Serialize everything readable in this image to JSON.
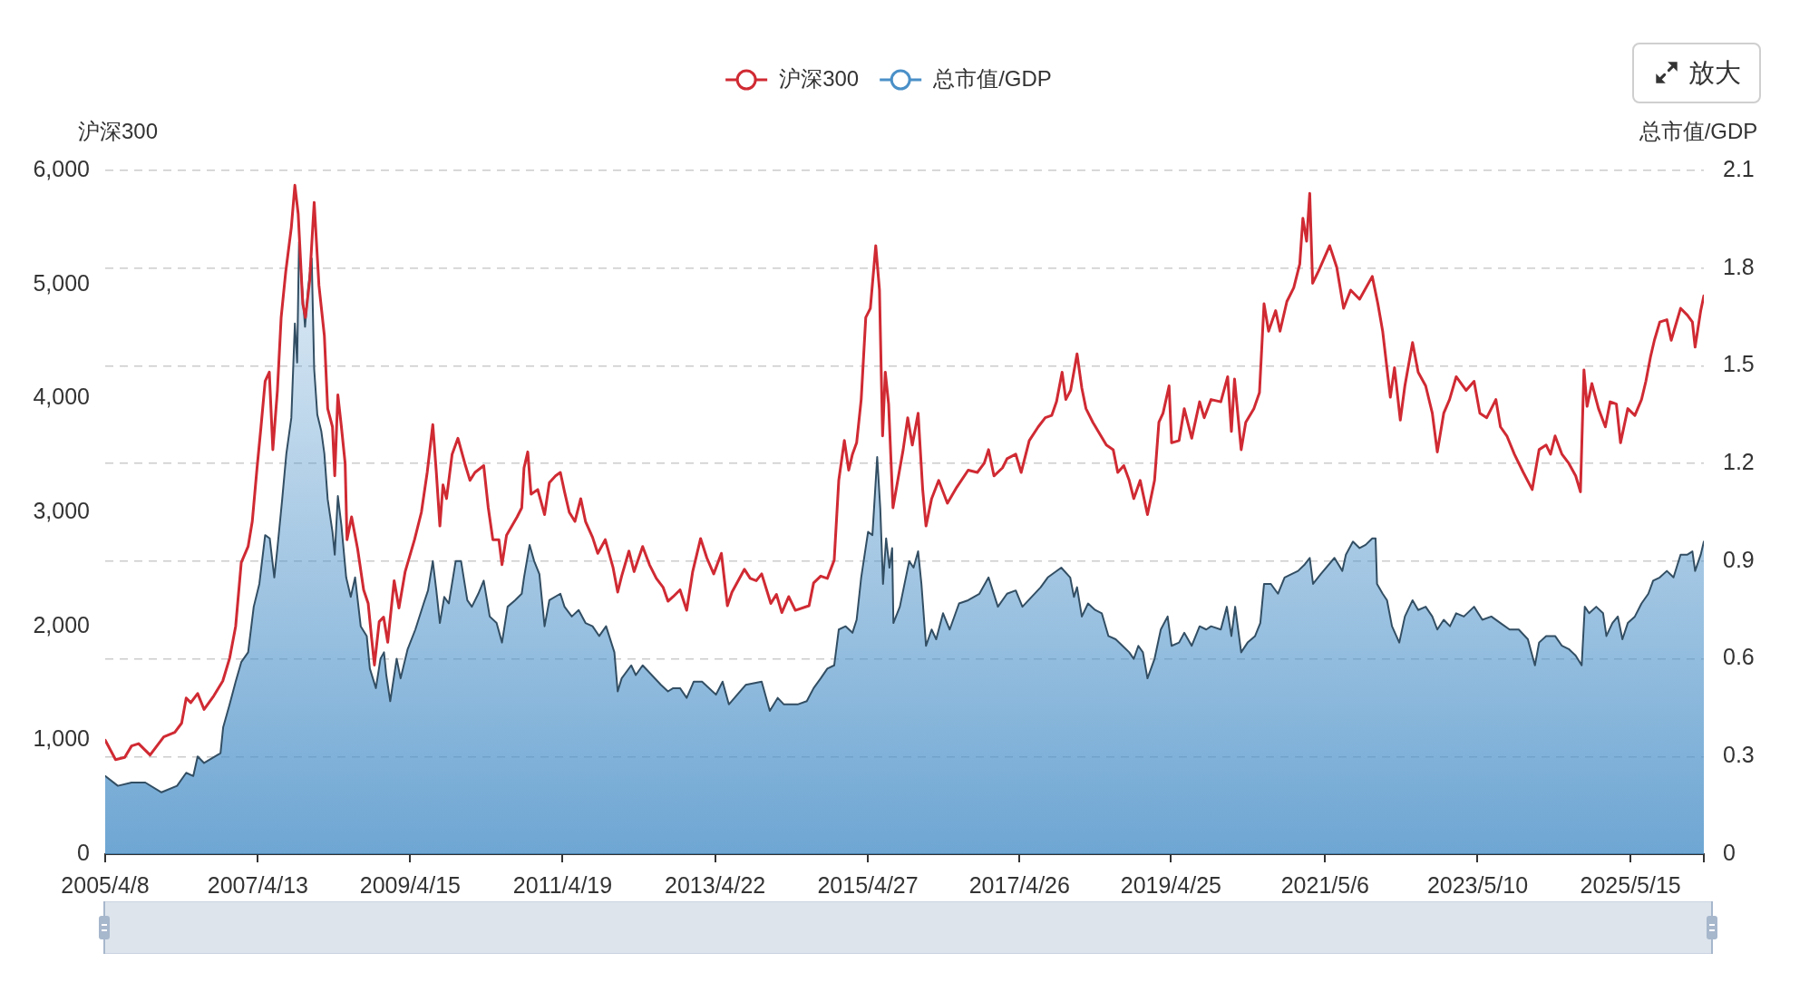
{
  "chart_data": {
    "type": "line",
    "ylabel": "沪深300",
    "y2label": "总市值/GDP",
    "annotations": [
      "放大"
    ],
    "legend": "top",
    "grid": "y2",
    "xlim": [
      "2005-04-08",
      "2026-05-03"
    ],
    "xticks": [
      {
        "value": "2005-04-08",
        "label": "2005/4/8"
      },
      {
        "value": "2007-04-13",
        "label": "2007/4/13"
      },
      {
        "value": "2009-04-15",
        "label": "2009/4/15"
      },
      {
        "value": "2011-04-19",
        "label": "2011/4/19"
      },
      {
        "value": "2013-04-22",
        "label": "2013/4/22"
      },
      {
        "value": "2015-04-27",
        "label": "2015/4/27"
      },
      {
        "value": "2017-04-26",
        "label": "2017/4/26"
      },
      {
        "value": "2019-04-25",
        "label": "2019/4/25"
      },
      {
        "value": "2021-05-06",
        "label": "2021/5/6"
      },
      {
        "value": "2023-05-10",
        "label": "2023/5/10"
      },
      {
        "value": "2025-05-15",
        "label": "2025/5/15"
      },
      {
        "value": "2026-05-03",
        "label": null
      }
    ],
    "ylim": [
      0,
      6000
    ],
    "yticks": [
      0,
      {
        "value": 1000,
        "label": "1,000"
      },
      {
        "value": 2000,
        "label": "2,000"
      },
      {
        "value": 3000,
        "label": "3,000"
      },
      {
        "value": 4000,
        "label": "4,000"
      },
      {
        "value": 5000,
        "label": "5,000"
      },
      {
        "value": 6000,
        "label": "6,000"
      }
    ],
    "y2lim": [
      0,
      2.1
    ],
    "y2ticks": [
      0,
      0.3,
      0.6,
      0.9,
      1.2,
      1.5,
      1.8,
      2.1
    ],
    "series": [
      {
        "name": "沪深300",
        "type": "line",
        "color": "#d02a33",
        "x": [
          "2005-04-08",
          "2005-05-28",
          "2005-07-11",
          "2005-08-13",
          "2005-09-16",
          "2005-11-10",
          "2006-01-15",
          "2006-03-09",
          "2006-04-11",
          "2006-05-03",
          "2006-05-25",
          "2006-06-27",
          "2006-07-28",
          "2006-09-13",
          "2006-10-26",
          "2006-11-28",
          "2006-12-27",
          "2007-01-23",
          "2007-02-25",
          "2007-03-17",
          "2007-04-09",
          "2007-04-28",
          "2007-05-18",
          "2007-06-07",
          "2007-06-24",
          "2007-07-16",
          "2007-08-03",
          "2007-08-25",
          "2007-09-21",
          "2007-10-08",
          "2007-10-24",
          "2007-11-15",
          "2007-11-28",
          "2007-12-18",
          "2008-01-09",
          "2008-02-01",
          "2008-02-27",
          "2008-03-14",
          "2008-04-06",
          "2008-04-17",
          "2008-05-02",
          "2008-05-19",
          "2008-06-06",
          "2008-06-15",
          "2008-07-07",
          "2008-08-05",
          "2008-09-03",
          "2008-09-25",
          "2008-10-10",
          "2008-10-25",
          "2008-11-17",
          "2008-12-08",
          "2008-12-28",
          "2009-01-28",
          "2009-02-20",
          "2009-03-22",
          "2009-05-06",
          "2009-06-08",
          "2009-07-06",
          "2009-08-02",
          "2009-08-19",
          "2009-09-05",
          "2009-09-20",
          "2009-10-07",
          "2009-11-03",
          "2009-12-01",
          "2010-01-03",
          "2010-01-28",
          "2010-02-21",
          "2010-04-04",
          "2010-04-26",
          "2010-05-18",
          "2010-06-16",
          "2010-07-01",
          "2010-07-23",
          "2010-09-12",
          "2010-10-04",
          "2010-10-15",
          "2010-11-02",
          "2010-11-18",
          "2010-12-20",
          "2011-01-22",
          "2011-02-14",
          "2011-03-16",
          "2011-04-08",
          "2011-04-28",
          "2011-05-21",
          "2011-06-17",
          "2011-07-15",
          "2011-08-07",
          "2011-09-10",
          "2011-10-05",
          "2011-11-10",
          "2011-12-17",
          "2012-01-09",
          "2012-01-28",
          "2012-03-03",
          "2012-03-28",
          "2012-05-08",
          "2012-06-10",
          "2012-07-13",
          "2012-08-15",
          "2012-09-07",
          "2012-10-02",
          "2012-11-04",
          "2012-12-06",
          "2013-01-04",
          "2013-02-11",
          "2013-03-13",
          "2013-04-15",
          "2013-05-22",
          "2013-06-20",
          "2013-07-12",
          "2013-09-10",
          "2013-10-08",
          "2013-11-06",
          "2013-12-02",
          "2014-01-15",
          "2014-02-11",
          "2014-03-09",
          "2014-04-11",
          "2014-05-13",
          "2014-07-18",
          "2014-08-09",
          "2014-09-12",
          "2014-10-14",
          "2014-11-16",
          "2014-12-08",
          "2015-01-04",
          "2015-01-25",
          "2015-02-12",
          "2015-03-04",
          "2015-03-26",
          "2015-04-17",
          "2015-05-09",
          "2015-06-04",
          "2015-06-22",
          "2015-07-07",
          "2015-07-20",
          "2015-08-05",
          "2015-08-26",
          "2015-09-18",
          "2015-10-14",
          "2015-11-05",
          "2015-11-27",
          "2015-12-25",
          "2016-01-16",
          "2016-02-01",
          "2016-02-28",
          "2016-04-02",
          "2016-05-14",
          "2016-06-28",
          "2016-08-22",
          "2016-10-05",
          "2016-11-07",
          "2016-11-28",
          "2016-12-24",
          "2017-02-03",
          "2017-02-25",
          "2017-04-08",
          "2017-05-04",
          "2017-06-12",
          "2017-07-25",
          "2017-08-28",
          "2017-09-28",
          "2017-10-21",
          "2017-11-17",
          "2017-12-05",
          "2017-12-28",
          "2018-01-28",
          "2018-02-20",
          "2018-03-12",
          "2018-04-14",
          "2018-06-18",
          "2018-07-21",
          "2018-08-12",
          "2018-09-10",
          "2018-10-06",
          "2018-10-28",
          "2018-11-28",
          "2019-01-02",
          "2019-02-05",
          "2019-02-26",
          "2019-03-18",
          "2019-04-16",
          "2019-04-28",
          "2019-06-03",
          "2019-06-28",
          "2019-08-03",
          "2019-09-10",
          "2019-10-02",
          "2019-11-04",
          "2019-12-21",
          "2020-01-23",
          "2020-02-10",
          "2020-02-25",
          "2020-03-28",
          "2020-04-19",
          "2020-05-28",
          "2020-06-24",
          "2020-07-16",
          "2020-08-07",
          "2020-09-10",
          "2020-10-01",
          "2020-11-03",
          "2020-12-06",
          "2021-01-04",
          "2021-01-19",
          "2021-02-06",
          "2021-02-21",
          "2021-03-07",
          "2021-04-05",
          "2021-05-28",
          "2021-07-01",
          "2021-08-03",
          "2021-09-06",
          "2021-10-19",
          "2021-12-19",
          "2022-01-15",
          "2022-02-07",
          "2022-03-16",
          "2022-04-05",
          "2022-05-03",
          "2022-05-25",
          "2022-07-01",
          "2022-07-28",
          "2022-09-02",
          "2022-10-04",
          "2022-10-28",
          "2022-11-28",
          "2022-12-26",
          "2023-01-27",
          "2023-03-16",
          "2023-04-23",
          "2023-05-21",
          "2023-06-23",
          "2023-08-06",
          "2023-08-28",
          "2023-09-28",
          "2023-11-03",
          "2023-12-16",
          "2024-01-28",
          "2024-03-01",
          "2024-04-04",
          "2024-04-25",
          "2024-05-17",
          "2024-06-19",
          "2024-07-22",
          "2024-08-24",
          "2024-09-16",
          "2024-10-03",
          "2024-10-18",
          "2024-11-10",
          "2024-12-12",
          "2025-01-14",
          "2025-02-06",
          "2025-03-08",
          "2025-03-28",
          "2025-05-02",
          "2025-06-05",
          "2025-07-07",
          "2025-07-28",
          "2025-08-20",
          "2025-09-07",
          "2025-10-03",
          "2025-11-06",
          "2025-11-27",
          "2026-01-11",
          "2026-02-13",
          "2026-03-09",
          "2026-03-22",
          "2026-04-18",
          "2026-05-03"
        ],
        "values": [
          1000,
          830,
          850,
          950,
          970,
          870,
          1030,
          1070,
          1150,
          1370,
          1330,
          1410,
          1270,
          1390,
          1520,
          1720,
          2000,
          2560,
          2700,
          2920,
          3390,
          3750,
          4150,
          4230,
          3550,
          4070,
          4710,
          5110,
          5500,
          5870,
          5620,
          4830,
          4710,
          5030,
          5720,
          4990,
          4550,
          3910,
          3750,
          3320,
          4030,
          3750,
          3430,
          2760,
          2960,
          2680,
          2320,
          2200,
          1920,
          1660,
          2040,
          2080,
          1860,
          2400,
          2160,
          2480,
          2760,
          3000,
          3350,
          3770,
          3350,
          2880,
          3240,
          3120,
          3510,
          3650,
          3430,
          3280,
          3350,
          3410,
          3040,
          2760,
          2760,
          2540,
          2800,
          2960,
          3040,
          3390,
          3530,
          3160,
          3200,
          2980,
          3260,
          3320,
          3350,
          3180,
          3000,
          2920,
          3120,
          2920,
          2780,
          2640,
          2760,
          2520,
          2300,
          2440,
          2660,
          2480,
          2700,
          2540,
          2420,
          2340,
          2220,
          2260,
          2320,
          2140,
          2480,
          2770,
          2600,
          2460,
          2640,
          2180,
          2300,
          2500,
          2420,
          2400,
          2460,
          2200,
          2280,
          2120,
          2260,
          2140,
          2180,
          2380,
          2440,
          2420,
          2580,
          3280,
          3630,
          3370,
          3510,
          3610,
          3990,
          4710,
          4790,
          5340,
          4950,
          3670,
          4230,
          3950,
          3040,
          3280,
          3550,
          3830,
          3590,
          3870,
          3200,
          2880,
          3120,
          3280,
          3080,
          3220,
          3370,
          3350,
          3430,
          3550,
          3320,
          3390,
          3470,
          3510,
          3350,
          3630,
          3750,
          3830,
          3850,
          3970,
          4230,
          3990,
          4070,
          4390,
          4090,
          3910,
          3790,
          3590,
          3550,
          3350,
          3410,
          3280,
          3120,
          3280,
          2980,
          3280,
          3790,
          3870,
          4110,
          3610,
          3630,
          3910,
          3650,
          3970,
          3830,
          3990,
          3970,
          4190,
          3710,
          4170,
          3550,
          3790,
          3910,
          4050,
          4830,
          4590,
          4770,
          4590,
          4850,
          4970,
          5180,
          5580,
          5380,
          5800,
          5010,
          5120,
          5340,
          5150,
          4790,
          4950,
          4870,
          5070,
          4830,
          4590,
          4010,
          4270,
          3810,
          4110,
          4490,
          4230,
          4110,
          3870,
          3530,
          3870,
          3990,
          4190,
          4070,
          4150,
          3870,
          3830,
          3990,
          3750,
          3670,
          3510,
          3350,
          3200,
          3550,
          3590,
          3510,
          3670,
          3510,
          3430,
          3320,
          3180,
          4250,
          3930,
          4130,
          3910,
          3750,
          3970,
          3950,
          3610,
          3910,
          3850,
          3990,
          4150,
          4370,
          4510,
          4670,
          4690,
          4510,
          4790,
          4730,
          4670,
          4450,
          4770,
          4900
        ]
      },
      {
        "name": "总市值/GDP",
        "type": "area",
        "axis": "y2",
        "color": "#4a90c8",
        "x": [
          "2005-04-08",
          "2005-06-08",
          "2005-08-13",
          "2005-10-18",
          "2006-01-04",
          "2006-03-20",
          "2006-05-03",
          "2006-06-06",
          "2006-06-27",
          "2006-07-28",
          "2006-10-15",
          "2006-10-28",
          "2006-11-28",
          "2006-12-27",
          "2007-01-23",
          "2007-02-25",
          "2007-03-24",
          "2007-04-20",
          "2007-05-18",
          "2007-06-09",
          "2007-07-01",
          "2007-07-16",
          "2007-08-08",
          "2007-08-28",
          "2007-09-21",
          "2007-10-08",
          "2007-10-19",
          "2007-10-28",
          "2007-11-13",
          "2007-11-26",
          "2007-12-11",
          "2007-12-28",
          "2008-01-09",
          "2008-01-24",
          "2008-02-12",
          "2008-02-27",
          "2008-03-14",
          "2008-04-06",
          "2008-04-17",
          "2008-05-02",
          "2008-05-19",
          "2008-06-11",
          "2008-07-03",
          "2008-07-24",
          "2008-08-20",
          "2008-09-18",
          "2008-10-03",
          "2008-11-01",
          "2008-11-23",
          "2008-12-10",
          "2008-12-21",
          "2009-01-09",
          "2009-02-09",
          "2009-02-28",
          "2009-04-03",
          "2009-05-10",
          "2009-06-19",
          "2009-07-10",
          "2009-08-02",
          "2009-08-19",
          "2009-09-05",
          "2009-09-26",
          "2009-10-18",
          "2009-11-20",
          "2009-12-16",
          "2010-01-15",
          "2010-02-06",
          "2010-03-09",
          "2010-04-04",
          "2010-05-03",
          "2010-06-05",
          "2010-07-01",
          "2010-07-28",
          "2010-09-02",
          "2010-10-04",
          "2010-10-15",
          "2010-11-11",
          "2010-12-03",
          "2010-12-28",
          "2011-01-22",
          "2011-02-14",
          "2011-04-08",
          "2011-04-28",
          "2011-06-02",
          "2011-07-05",
          "2011-08-07",
          "2011-09-10",
          "2011-10-12",
          "2011-11-14",
          "2011-12-24",
          "2012-01-09",
          "2012-01-28",
          "2012-03-14",
          "2012-04-05",
          "2012-05-08",
          "2012-06-21",
          "2012-08-04",
          "2012-09-07",
          "2012-10-02",
          "2012-11-04",
          "2012-12-06",
          "2013-01-09",
          "2013-02-18",
          "2013-04-26",
          "2013-05-28",
          "2013-06-27",
          "2013-09-16",
          "2013-12-02",
          "2014-01-10",
          "2014-02-17",
          "2014-03-19",
          "2014-05-24",
          "2014-07-07",
          "2014-08-09",
          "2014-09-12",
          "2014-10-14",
          "2014-11-16",
          "2014-12-08",
          "2015-01-10",
          "2015-02-12",
          "2015-03-04",
          "2015-03-26",
          "2015-04-28",
          "2015-05-19",
          "2015-06-11",
          "2015-06-26",
          "2015-07-09",
          "2015-07-24",
          "2015-08-09",
          "2015-08-22",
          "2015-08-28",
          "2015-09-28",
          "2015-11-12",
          "2015-12-03",
          "2015-12-25",
          "2016-01-10",
          "2016-02-01",
          "2016-02-28",
          "2016-03-21",
          "2016-04-23",
          "2016-05-25",
          "2016-07-09",
          "2016-08-22",
          "2016-10-15",
          "2016-11-28",
          "2017-01-12",
          "2017-02-25",
          "2017-04-08",
          "2017-05-10",
          "2017-06-23",
          "2017-08-06",
          "2017-09-09",
          "2017-11-13",
          "2017-12-26",
          "2018-01-13",
          "2018-01-28",
          "2018-02-20",
          "2018-03-22",
          "2018-04-25",
          "2018-05-27",
          "2018-06-28",
          "2018-08-02",
          "2018-09-04",
          "2018-10-06",
          "2018-10-28",
          "2018-11-19",
          "2018-12-11",
          "2019-01-02",
          "2019-02-05",
          "2019-03-07",
          "2019-04-09",
          "2019-04-28",
          "2019-06-03",
          "2019-06-28",
          "2019-08-03",
          "2019-09-10",
          "2019-10-12",
          "2019-11-04",
          "2019-12-21",
          "2020-01-19",
          "2020-02-10",
          "2020-02-28",
          "2020-03-28",
          "2020-04-28",
          "2020-06-03",
          "2020-06-28",
          "2020-07-16",
          "2020-08-18",
          "2020-09-21",
          "2020-10-23",
          "2020-12-27",
          "2021-01-28",
          "2021-02-21",
          "2021-03-09",
          "2021-04-15",
          "2021-06-20",
          "2021-07-28",
          "2021-08-14",
          "2021-09-17",
          "2021-10-19",
          "2021-11-17",
          "2021-12-19",
          "2022-01-04",
          "2022-01-11",
          "2022-02-07",
          "2022-02-28",
          "2022-03-24",
          "2022-04-28",
          "2022-05-25",
          "2022-07-01",
          "2022-07-28",
          "2022-09-02",
          "2022-10-04",
          "2022-10-28",
          "2022-11-28",
          "2022-12-28",
          "2023-01-27",
          "2023-03-05",
          "2023-04-23",
          "2023-06-02",
          "2023-07-15",
          "2023-08-28",
          "2023-10-11",
          "2023-11-24",
          "2024-01-07",
          "2024-02-10",
          "2024-03-01",
          "2024-04-04",
          "2024-05-17",
          "2024-06-19",
          "2024-07-22",
          "2024-08-24",
          "2024-09-22",
          "2024-10-07",
          "2024-10-28",
          "2024-12-01",
          "2025-01-03",
          "2025-01-19",
          "2025-02-17",
          "2025-03-15",
          "2025-04-06",
          "2025-05-02",
          "2025-06-05",
          "2025-07-07",
          "2025-08-09",
          "2025-09-01",
          "2025-10-03",
          "2025-11-06",
          "2025-12-08",
          "2026-01-11",
          "2026-02-13",
          "2026-03-09",
          "2026-03-22",
          "2026-04-18",
          "2026-05-03"
        ],
        "values": [
          0.24,
          0.21,
          0.22,
          0.22,
          0.19,
          0.21,
          0.25,
          0.24,
          0.3,
          0.28,
          0.31,
          0.39,
          0.46,
          0.53,
          0.59,
          0.62,
          0.76,
          0.83,
          0.98,
          0.97,
          0.85,
          0.94,
          1.09,
          1.23,
          1.34,
          1.63,
          1.51,
          1.88,
          1.73,
          1.62,
          1.74,
          1.83,
          1.49,
          1.35,
          1.3,
          1.23,
          1.09,
          0.99,
          0.92,
          1.1,
          1.01,
          0.85,
          0.79,
          0.85,
          0.7,
          0.67,
          0.57,
          0.51,
          0.6,
          0.62,
          0.55,
          0.47,
          0.6,
          0.54,
          0.63,
          0.69,
          0.77,
          0.81,
          0.9,
          0.81,
          0.71,
          0.79,
          0.77,
          0.9,
          0.9,
          0.78,
          0.76,
          0.8,
          0.84,
          0.73,
          0.71,
          0.65,
          0.76,
          0.78,
          0.8,
          0.85,
          0.95,
          0.9,
          0.86,
          0.7,
          0.78,
          0.8,
          0.76,
          0.73,
          0.75,
          0.71,
          0.7,
          0.67,
          0.7,
          0.62,
          0.5,
          0.54,
          0.58,
          0.55,
          0.58,
          0.55,
          0.52,
          0.5,
          0.51,
          0.51,
          0.48,
          0.53,
          0.53,
          0.49,
          0.53,
          0.46,
          0.52,
          0.53,
          0.44,
          0.48,
          0.46,
          0.46,
          0.47,
          0.51,
          0.54,
          0.57,
          0.58,
          0.69,
          0.7,
          0.68,
          0.72,
          0.85,
          0.99,
          0.98,
          1.22,
          1.06,
          0.83,
          0.97,
          0.88,
          0.94,
          0.71,
          0.76,
          0.9,
          0.88,
          0.93,
          0.83,
          0.64,
          0.69,
          0.66,
          0.74,
          0.69,
          0.77,
          0.78,
          0.8,
          0.85,
          0.76,
          0.8,
          0.81,
          0.76,
          0.79,
          0.82,
          0.85,
          0.88,
          0.85,
          0.79,
          0.82,
          0.73,
          0.77,
          0.75,
          0.74,
          0.67,
          0.66,
          0.64,
          0.62,
          0.6,
          0.64,
          0.62,
          0.54,
          0.6,
          0.69,
          0.73,
          0.64,
          0.65,
          0.68,
          0.64,
          0.7,
          0.69,
          0.7,
          0.69,
          0.76,
          0.67,
          0.76,
          0.62,
          0.65,
          0.67,
          0.71,
          0.83,
          0.83,
          0.8,
          0.85,
          0.87,
          0.89,
          0.91,
          0.83,
          0.86,
          0.91,
          0.87,
          0.92,
          0.96,
          0.94,
          0.95,
          0.97,
          0.97,
          0.83,
          0.8,
          0.78,
          0.7,
          0.65,
          0.73,
          0.78,
          0.75,
          0.76,
          0.73,
          0.69,
          0.72,
          0.7,
          0.74,
          0.73,
          0.76,
          0.72,
          0.73,
          0.71,
          0.69,
          0.69,
          0.66,
          0.58,
          0.65,
          0.67,
          0.67,
          0.64,
          0.63,
          0.61,
          0.58,
          0.76,
          0.74,
          0.76,
          0.74,
          0.67,
          0.71,
          0.73,
          0.66,
          0.71,
          0.73,
          0.77,
          0.8,
          0.84,
          0.85,
          0.87,
          0.85,
          0.92,
          0.92,
          0.93,
          0.87,
          0.92,
          0.96
        ]
      }
    ]
  }
}
